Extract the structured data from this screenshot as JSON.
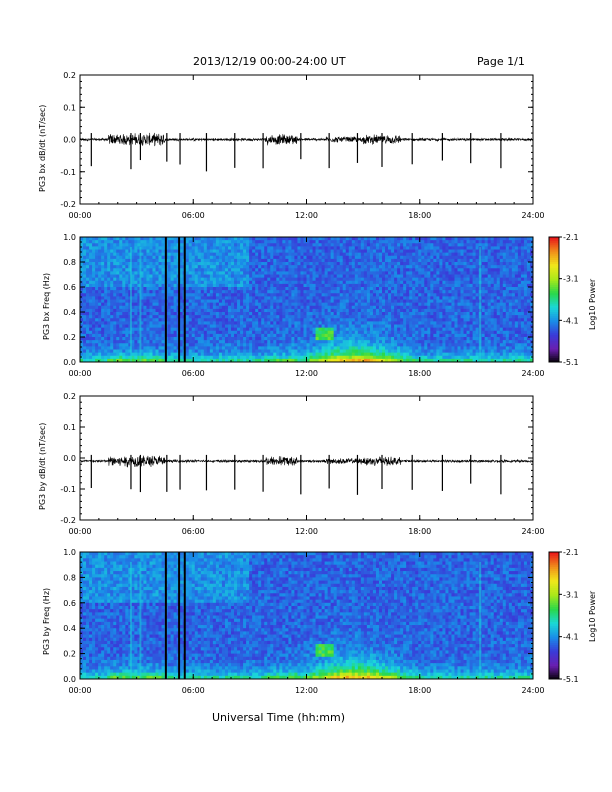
{
  "header": {
    "title": "2013/12/19   00:00-24:00 UT",
    "page": "Page 1/1"
  },
  "footer": {
    "xlabel": "Universal Time (hh:mm)"
  },
  "colorbar_label": "Log10 Power",
  "colors": {
    "colorbar": [
      "#000000",
      "#6a1fb0",
      "#3a3ad8",
      "#1a8ce8",
      "#1ad8d8",
      "#2ad84a",
      "#a8e81a",
      "#f0e81a",
      "#f0901a",
      "#e81a1a"
    ]
  },
  "chart_data": [
    {
      "type": "line",
      "ylabel": "PG3 bx dB/dt (nT/sec)",
      "xticks": [
        "00:00",
        "06:00",
        "12:00",
        "18:00",
        "24:00"
      ],
      "yticks": [
        "0.2",
        "0.1",
        "0.0",
        "-0.1",
        "-0.2"
      ],
      "ylim": [
        -0.2,
        0.2
      ],
      "xlim_hours": [
        0,
        24
      ],
      "baseline": 0.0,
      "spikes_hours": [
        0.6,
        2.7,
        3.2,
        4.6,
        5.3,
        6.7,
        8.2,
        9.7,
        11.7,
        13.2,
        14.7,
        16.0,
        17.6,
        19.2,
        20.7,
        22.3
      ],
      "spike_min": -0.1
    },
    {
      "type": "heatmap",
      "ylabel": "PG3 bx Freq (Hz)",
      "xticks": [
        "00:00",
        "06:00",
        "12:00",
        "18:00",
        "24:00"
      ],
      "yticks": [
        "1.0",
        "0.8",
        "0.6",
        "0.4",
        "0.2",
        "0.0"
      ],
      "ylim": [
        0,
        1.0
      ],
      "colorbar_ticks": [
        "-2.1",
        "-3.1",
        "-4.1",
        "-5.1"
      ],
      "colorbar_range": [
        -5.1,
        -2.1
      ],
      "gaps_hours": [
        4.55,
        5.25,
        5.55
      ]
    },
    {
      "type": "line",
      "ylabel": "PG3 by dB/dt (nT/sec)",
      "xticks": [
        "00:00",
        "06:00",
        "12:00",
        "18:00",
        "24:00"
      ],
      "yticks": [
        "0.2",
        "0.1",
        "0.0",
        "-0.1",
        "-0.2"
      ],
      "ylim": [
        -0.2,
        0.2
      ],
      "xlim_hours": [
        0,
        24
      ],
      "baseline": -0.01,
      "spikes_hours": [
        0.6,
        2.7,
        3.2,
        4.6,
        5.3,
        6.7,
        8.2,
        9.7,
        11.7,
        13.2,
        14.7,
        16.0,
        17.6,
        19.2,
        20.7,
        22.3
      ],
      "spike_min": -0.12
    },
    {
      "type": "heatmap",
      "ylabel": "PG3 by Freq (Hz)",
      "xticks": [
        "00:00",
        "06:00",
        "12:00",
        "18:00",
        "24:00"
      ],
      "yticks": [
        "1.0",
        "0.8",
        "0.6",
        "0.4",
        "0.2",
        "0.0"
      ],
      "ylim": [
        0,
        1.0
      ],
      "colorbar_ticks": [
        "-2.1",
        "-3.1",
        "-4.1",
        "-5.1"
      ],
      "colorbar_range": [
        -5.1,
        -2.1
      ],
      "gaps_hours": [
        4.55,
        5.25,
        5.55
      ]
    }
  ]
}
